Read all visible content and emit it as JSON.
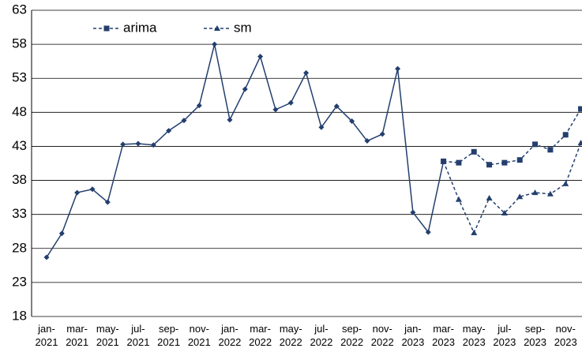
{
  "chart_data": {
    "type": "line",
    "categories": [
      "jan-\n2021",
      null,
      "mar-\n2021",
      null,
      "may-\n2021",
      null,
      "jul-\n2021",
      null,
      "sep-\n2021",
      null,
      "nov-\n2021",
      null,
      "jan-\n2022",
      null,
      "mar-\n2022",
      null,
      "may-\n2022",
      null,
      "jul-\n2022",
      null,
      "sep-\n2022",
      null,
      "nov-\n2022",
      null,
      "jan-\n2023",
      null,
      "mar-\n2023",
      null,
      "may-\n2023",
      null,
      "jul-\n2023",
      null,
      "sep-\n2023",
      null,
      "nov-\n2023",
      null
    ],
    "series": [
      {
        "color": "#243f6e",
        "marker": "diamond",
        "dash": false,
        "values": [
          26.7,
          30.2,
          36.2,
          36.7,
          34.8,
          43.3,
          43.4,
          43.2,
          45.3,
          46.8,
          49.0,
          58.0,
          46.9,
          51.4,
          56.2,
          48.4,
          49.4,
          53.8,
          45.8,
          48.9,
          46.7,
          43.8,
          44.8,
          54.4,
          33.3,
          30.4,
          40.8,
          null,
          null,
          null,
          null,
          null,
          null,
          null,
          null,
          null
        ]
      },
      {
        "name": "arima",
        "color": "#243f6e",
        "marker": "square",
        "dash": true,
        "values": [
          null,
          null,
          null,
          null,
          null,
          null,
          null,
          null,
          null,
          null,
          null,
          null,
          null,
          null,
          null,
          null,
          null,
          null,
          null,
          null,
          null,
          null,
          null,
          null,
          null,
          null,
          40.8,
          40.6,
          42.2,
          40.3,
          40.6,
          41.0,
          43.3,
          42.5,
          44.7,
          48.5
        ]
      },
      {
        "name": "sm",
        "color": "#243f6e",
        "marker": "triangle",
        "dash": true,
        "values": [
          null,
          null,
          null,
          null,
          null,
          null,
          null,
          null,
          null,
          null,
          null,
          null,
          null,
          null,
          null,
          null,
          null,
          null,
          null,
          null,
          null,
          null,
          null,
          null,
          null,
          null,
          40.8,
          35.2,
          30.3,
          35.4,
          33.2,
          35.6,
          36.2,
          36.0,
          37.5,
          43.5
        ]
      }
    ],
    "ylim": [
      18,
      63
    ],
    "yticks": [
      18,
      23,
      28,
      33,
      38,
      43,
      48,
      53,
      58,
      63
    ],
    "grid": true
  }
}
